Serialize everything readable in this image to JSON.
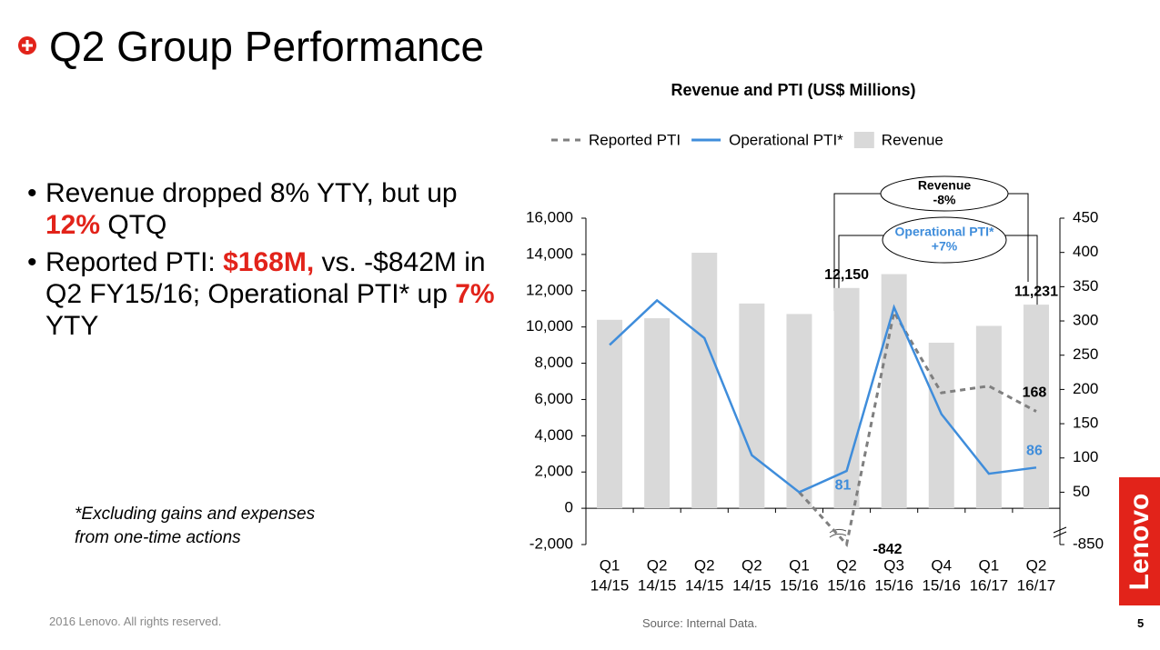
{
  "slide": {
    "title": "Q2 Group Performance",
    "bullets": [
      [
        {
          "text": "Revenue dropped 8% YTY, but up "
        },
        {
          "text": "12%",
          "highlight": true
        },
        {
          "text": " QTQ"
        }
      ],
      [
        {
          "text": "Reported PTI: "
        },
        {
          "text": "$168M,",
          "highlight": true
        },
        {
          "text": " vs. -$842M in Q2 FY15/16; Operational PTI* up "
        },
        {
          "text": "7%",
          "highlight": true
        },
        {
          "text": " YTY"
        }
      ]
    ],
    "footnote": [
      "*Excluding gains and expenses",
      "from one-time actions"
    ],
    "copyright": "2016 Lenovo. All rights reserved.",
    "source": "Source:  Internal Data.",
    "page_number": "5",
    "logo": "Lenovo"
  },
  "chart_data": {
    "type": "bar",
    "title": "Revenue and PTI (US$ Millions)",
    "categories": [
      [
        "Q1",
        "14/15"
      ],
      [
        "Q2",
        "14/15"
      ],
      [
        "Q2",
        "14/15"
      ],
      [
        "Q2",
        "14/15"
      ],
      [
        "Q1",
        "15/16"
      ],
      [
        "Q2",
        "15/16"
      ],
      [
        "Q3",
        "15/16"
      ],
      [
        "Q4",
        "15/16"
      ],
      [
        "Q1",
        "16/17"
      ],
      [
        "Q2",
        "16/17"
      ]
    ],
    "series": [
      {
        "name": "Reported PTI",
        "type": "line",
        "axis": "y2",
        "line_style": "dashed",
        "color": "#7f7f7f",
        "values": [
          null,
          null,
          null,
          null,
          50,
          -842,
          313,
          195,
          205,
          168
        ],
        "value_labels": [
          null,
          null,
          null,
          null,
          null,
          "-842",
          null,
          null,
          null,
          "168"
        ],
        "label_color": "#000000"
      },
      {
        "name": "Operational PTI*",
        "type": "line",
        "axis": "y2",
        "line_style": "solid",
        "color": "#3f8ddb",
        "values": [
          265,
          330,
          275,
          104,
          50,
          81,
          320,
          164,
          77,
          86
        ],
        "value_labels": [
          null,
          null,
          null,
          null,
          null,
          "81",
          null,
          null,
          null,
          "86"
        ],
        "label_color": "#3f8ddb"
      },
      {
        "name": "Revenue",
        "type": "bar",
        "color": "#d9d9d9",
        "values": [
          10395,
          10481,
          14093,
          11295,
          10716,
          12150,
          12913,
          9132,
          10062,
          11231
        ],
        "value_labels": [
          null,
          null,
          null,
          null,
          null,
          "12,150",
          null,
          null,
          null,
          "11,231"
        ],
        "label_color": "#000000"
      }
    ],
    "ylim": [
      -2000,
      16000
    ],
    "yticks": [
      {
        "value": -2000,
        "label": "-2,000"
      },
      0,
      {
        "value": 2000,
        "label": "2,000"
      },
      {
        "value": 4000,
        "label": "4,000"
      },
      {
        "value": 6000,
        "label": "6,000"
      },
      {
        "value": 8000,
        "label": "8,000"
      },
      {
        "value": 10000,
        "label": "10,000"
      },
      {
        "value": 12000,
        "label": "12,000"
      },
      {
        "value": 14000,
        "label": "14,000"
      },
      {
        "value": 16000,
        "label": "16,000"
      }
    ],
    "y2lim": [
      -850,
      450
    ],
    "y2ticks": [
      -850,
      50,
      100,
      150,
      200,
      250,
      300,
      350,
      400,
      450
    ],
    "y2_axis_break": true,
    "grid": false,
    "legend": "top",
    "annotations": [
      {
        "lines": [
          "Revenue",
          "-8%"
        ],
        "color": "#000000"
      },
      {
        "lines": [
          "Operational PTI*",
          "+7%"
        ],
        "color": "#3f8ddb"
      }
    ]
  }
}
